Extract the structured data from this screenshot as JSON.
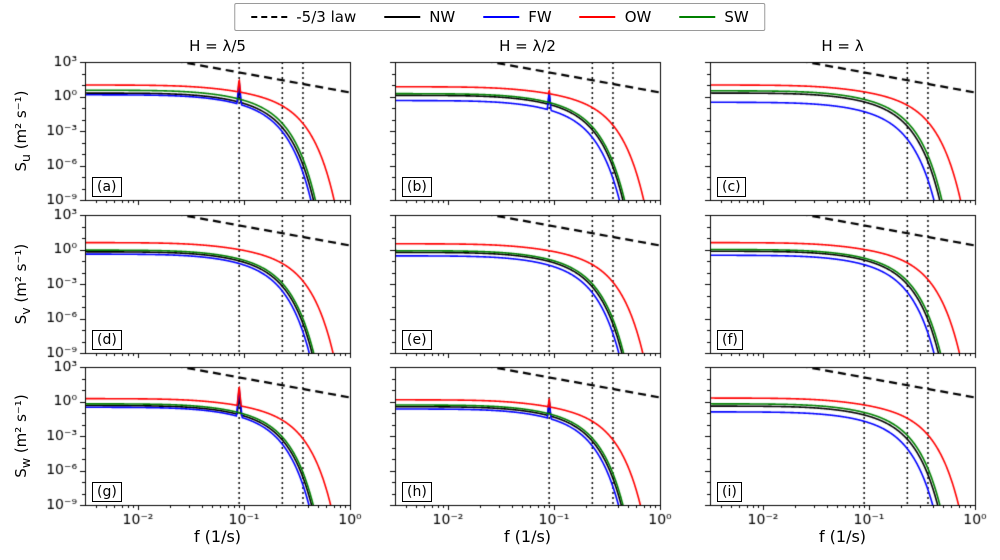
{
  "figure": {
    "legend": {
      "items": [
        {
          "label": "-5/3 law",
          "dash": "dashed",
          "color": "#000000"
        },
        {
          "label": "NW",
          "dash": "solid",
          "color": "#000000"
        },
        {
          "label": "FW",
          "dash": "solid",
          "color": "#0000ff"
        },
        {
          "label": "OW",
          "dash": "solid",
          "color": "#ff0000"
        },
        {
          "label": "SW",
          "dash": "solid",
          "color": "#008000"
        }
      ]
    },
    "col_titles": [
      "H = λ/5",
      "H = λ/2",
      "H = λ"
    ],
    "row_labels": [
      {
        "prefix": "S",
        "sub": "u",
        "unit": " (m² s⁻¹)"
      },
      {
        "prefix": "S",
        "sub": "v",
        "unit": " (m² s⁻¹)"
      },
      {
        "prefix": "S",
        "sub": "w",
        "unit": " (m² s⁻¹)"
      }
    ],
    "x_axis_label": "f (1/s)"
  },
  "chart_data": {
    "type": "line",
    "x_scale": "log",
    "y_scale": "log",
    "xlim_log": [
      -2.5,
      0
    ],
    "ylim_log": [
      -9,
      3
    ],
    "x_tick_labels": [
      "10⁻²",
      "10⁻¹",
      "10⁰"
    ],
    "x_tick_logs": [
      -2,
      -1,
      0
    ],
    "y_tick_labels": [
      "10³",
      "10⁰",
      "10⁻³",
      "10⁻⁶",
      "10⁻⁹"
    ],
    "y_tick_logs": [
      3,
      0,
      -3,
      -6,
      -9
    ],
    "xlabel": "f (1/s)",
    "grid": false,
    "legend_position": "top-center",
    "vlines_f": [
      0.09,
      0.23,
      0.36
    ],
    "ref_line": {
      "label": "-5/3 law",
      "slope": -1.6667,
      "intercept_log10": 0.35
    },
    "series_colors": {
      "NW": "#000000",
      "FW": "#0000ff",
      "OW": "#ff0000",
      "SW": "#008000"
    },
    "model": {
      "knee_f": 0.04,
      "knee_m": 0.6,
      "cutoff_n": 2,
      "spike_f": 0.09,
      "spike_slope": 90
    },
    "panels": [
      {
        "label": "(a)",
        "row": 0,
        "col": 0,
        "title": "H = λ/5",
        "ylabel": "Su (m² s⁻¹)",
        "series": [
          {
            "name": "NW",
            "plateau_log10": 0.3,
            "cutoff_f": 0.105,
            "spike_peak_log10": 0.85
          },
          {
            "name": "FW",
            "plateau_log10": 0.15,
            "cutoff_f": 0.1,
            "spike_peak_log10": 1.3
          },
          {
            "name": "OW",
            "plateau_log10": 1.0,
            "cutoff_f": 0.16,
            "spike_peak_log10": 1.55
          },
          {
            "name": "SW",
            "plateau_log10": 0.55,
            "cutoff_f": 0.108,
            "spike_peak_log10": 0
          }
        ]
      },
      {
        "label": "(b)",
        "row": 0,
        "col": 1,
        "title": "H = λ/2",
        "ylabel": "Su (m² s⁻¹)",
        "series": [
          {
            "name": "NW",
            "plateau_log10": 0.1,
            "cutoff_f": 0.105,
            "spike_peak_log10": 0.25
          },
          {
            "name": "FW",
            "plateau_log10": -0.35,
            "cutoff_f": 0.1,
            "spike_peak_log10": 0.45
          },
          {
            "name": "OW",
            "plateau_log10": 0.85,
            "cutoff_f": 0.16,
            "spike_peak_log10": 0.65
          },
          {
            "name": "SW",
            "plateau_log10": 0.25,
            "cutoff_f": 0.108,
            "spike_peak_log10": 0
          }
        ]
      },
      {
        "label": "(c)",
        "row": 0,
        "col": 2,
        "title": "H = λ",
        "ylabel": "Su (m² s⁻¹)",
        "series": [
          {
            "name": "NW",
            "plateau_log10": 0.3,
            "cutoff_f": 0.108,
            "spike_peak_log10": 0
          },
          {
            "name": "FW",
            "plateau_log10": -0.5,
            "cutoff_f": 0.1,
            "spike_peak_log10": 0
          },
          {
            "name": "OW",
            "plateau_log10": 1.0,
            "cutoff_f": 0.165,
            "spike_peak_log10": 0
          },
          {
            "name": "SW",
            "plateau_log10": 0.5,
            "cutoff_f": 0.112,
            "spike_peak_log10": 0
          }
        ]
      },
      {
        "label": "(d)",
        "row": 1,
        "col": 0,
        "title": "H = λ/5",
        "ylabel": "Sv (m² s⁻¹)",
        "series": [
          {
            "name": "NW",
            "plateau_log10": -0.2,
            "cutoff_f": 0.105,
            "spike_peak_log10": 0
          },
          {
            "name": "FW",
            "plateau_log10": -0.4,
            "cutoff_f": 0.1,
            "spike_peak_log10": 0
          },
          {
            "name": "OW",
            "plateau_log10": 0.6,
            "cutoff_f": 0.16,
            "spike_peak_log10": 0
          },
          {
            "name": "SW",
            "plateau_log10": -0.05,
            "cutoff_f": 0.108,
            "spike_peak_log10": 0
          }
        ]
      },
      {
        "label": "(e)",
        "row": 1,
        "col": 1,
        "title": "H = λ/2",
        "ylabel": "Sv (m² s⁻¹)",
        "series": [
          {
            "name": "NW",
            "plateau_log10": -0.25,
            "cutoff_f": 0.105,
            "spike_peak_log10": 0
          },
          {
            "name": "FW",
            "plateau_log10": -0.55,
            "cutoff_f": 0.1,
            "spike_peak_log10": 0
          },
          {
            "name": "OW",
            "plateau_log10": 0.5,
            "cutoff_f": 0.16,
            "spike_peak_log10": 0
          },
          {
            "name": "SW",
            "plateau_log10": -0.1,
            "cutoff_f": 0.108,
            "spike_peak_log10": 0
          }
        ]
      },
      {
        "label": "(f)",
        "row": 1,
        "col": 2,
        "title": "H = λ",
        "ylabel": "Sv (m² s⁻¹)",
        "series": [
          {
            "name": "NW",
            "plateau_log10": -0.15,
            "cutoff_f": 0.108,
            "spike_peak_log10": 0
          },
          {
            "name": "FW",
            "plateau_log10": -0.5,
            "cutoff_f": 0.1,
            "spike_peak_log10": 0
          },
          {
            "name": "OW",
            "plateau_log10": 0.6,
            "cutoff_f": 0.165,
            "spike_peak_log10": 0
          },
          {
            "name": "SW",
            "plateau_log10": 0.0,
            "cutoff_f": 0.112,
            "spike_peak_log10": 0
          }
        ]
      },
      {
        "label": "(g)",
        "row": 2,
        "col": 0,
        "title": "H = λ/5",
        "ylabel": "Sw (m² s⁻¹)",
        "series": [
          {
            "name": "NW",
            "plateau_log10": -0.35,
            "cutoff_f": 0.105,
            "spike_peak_log10": 0.6
          },
          {
            "name": "FW",
            "plateau_log10": -0.5,
            "cutoff_f": 0.1,
            "spike_peak_log10": 1.1
          },
          {
            "name": "OW",
            "plateau_log10": 0.25,
            "cutoff_f": 0.155,
            "spike_peak_log10": 1.35
          },
          {
            "name": "SW",
            "plateau_log10": -0.2,
            "cutoff_f": 0.108,
            "spike_peak_log10": 0
          }
        ]
      },
      {
        "label": "(h)",
        "row": 2,
        "col": 1,
        "title": "H = λ/2",
        "ylabel": "Sw (m² s⁻¹)",
        "series": [
          {
            "name": "NW",
            "plateau_log10": -0.45,
            "cutoff_f": 0.105,
            "spike_peak_log10": 0.05
          },
          {
            "name": "FW",
            "plateau_log10": -0.65,
            "cutoff_f": 0.1,
            "spike_peak_log10": 0.15
          },
          {
            "name": "OW",
            "plateau_log10": 0.15,
            "cutoff_f": 0.155,
            "spike_peak_log10": 0.35
          },
          {
            "name": "SW",
            "plateau_log10": -0.3,
            "cutoff_f": 0.108,
            "spike_peak_log10": 0
          }
        ]
      },
      {
        "label": "(i)",
        "row": 2,
        "col": 2,
        "title": "H = λ",
        "ylabel": "Sw (m² s⁻¹)",
        "series": [
          {
            "name": "NW",
            "plateau_log10": -0.4,
            "cutoff_f": 0.108,
            "spike_peak_log10": 0
          },
          {
            "name": "FW",
            "plateau_log10": -0.9,
            "cutoff_f": 0.1,
            "spike_peak_log10": 0
          },
          {
            "name": "OW",
            "plateau_log10": 0.3,
            "cutoff_f": 0.165,
            "spike_peak_log10": 0
          },
          {
            "name": "SW",
            "plateau_log10": -0.2,
            "cutoff_f": 0.112,
            "spike_peak_log10": 0
          }
        ]
      }
    ]
  }
}
